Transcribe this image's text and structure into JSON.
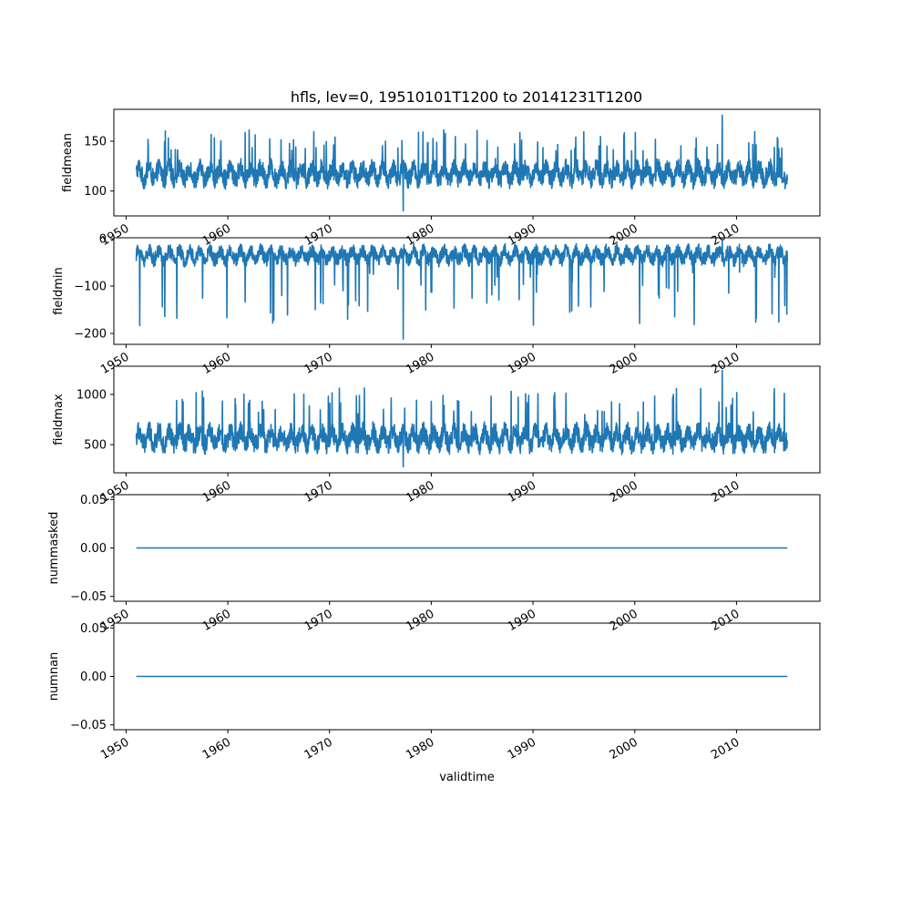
{
  "figure_title": "hfls, lev=0, 19510101T1200 to 20141231T1200",
  "colors": {
    "series": "#1f77b4",
    "axes": "#000000",
    "background": "#ffffff"
  },
  "chart_data": [
    {
      "type": "line",
      "ylabel": "fieldmean",
      "xlim": [
        1948.8,
        2018.2
      ],
      "ylim": [
        75,
        182
      ],
      "yticks": [
        100,
        150
      ],
      "ytick_labels": [
        "100",
        "150"
      ],
      "xticks": [
        1950,
        1960,
        1970,
        1980,
        1990,
        2000,
        2010
      ],
      "xtick_labels": [
        "1950",
        "1960",
        "1970",
        "1980",
        "1990",
        "2000",
        "2010"
      ],
      "x_range": [
        1951.0,
        2015.0
      ],
      "series": [
        {
          "values_summary": {
            "typical_low": 95,
            "typical_high": 140,
            "min": 80,
            "max": 176
          }
        }
      ]
    },
    {
      "type": "line",
      "ylabel": "fieldmin",
      "xlim": [
        1948.8,
        2018.2
      ],
      "ylim": [
        -223,
        2
      ],
      "yticks": [
        -200,
        -100,
        0
      ],
      "ytick_labels": [
        "−200",
        "−100",
        "0"
      ],
      "xticks": [
        1950,
        1960,
        1970,
        1980,
        1990,
        2000,
        2010
      ],
      "xtick_labels": [
        "1950",
        "1960",
        "1970",
        "1980",
        "1990",
        "2000",
        "2010"
      ],
      "x_range": [
        1951.0,
        2015.0
      ],
      "series": [
        {
          "values_summary": {
            "typical_low": -70,
            "typical_high": 0,
            "min": -212,
            "max": 0
          }
        }
      ]
    },
    {
      "type": "line",
      "ylabel": "fieldmax",
      "xlim": [
        1948.8,
        2018.2
      ],
      "ylim": [
        220,
        1280
      ],
      "yticks": [
        500,
        1000
      ],
      "ytick_labels": [
        "500",
        "1000"
      ],
      "xticks": [
        1950,
        1960,
        1970,
        1980,
        1990,
        2000,
        2010
      ],
      "xtick_labels": [
        "1950",
        "1960",
        "1970",
        "1980",
        "1990",
        "2000",
        "2010"
      ],
      "x_range": [
        1951.0,
        2015.0
      ],
      "series": [
        {
          "values_summary": {
            "typical_low": 330,
            "typical_high": 800,
            "min": 280,
            "max": 1240
          }
        }
      ]
    },
    {
      "type": "line",
      "ylabel": "nummasked",
      "xlim": [
        1948.8,
        2018.2
      ],
      "ylim": [
        -0.055,
        0.055
      ],
      "yticks": [
        -0.05,
        0.0,
        0.05
      ],
      "ytick_labels": [
        "−0.05",
        "0.00",
        "0.05"
      ],
      "xticks": [
        1950,
        1960,
        1970,
        1980,
        1990,
        2000,
        2010
      ],
      "xtick_labels": [
        "1950",
        "1960",
        "1970",
        "1980",
        "1990",
        "2000",
        "2010"
      ],
      "x_range": [
        1951.0,
        2015.0
      ],
      "series": [
        {
          "values_summary": {
            "constant": 0.0
          }
        }
      ]
    },
    {
      "type": "line",
      "ylabel": "numnan",
      "xlabel": "validtime",
      "xlim": [
        1948.8,
        2018.2
      ],
      "ylim": [
        -0.055,
        0.055
      ],
      "yticks": [
        -0.05,
        0.0,
        0.05
      ],
      "ytick_labels": [
        "−0.05",
        "0.00",
        "0.05"
      ],
      "xticks": [
        1950,
        1960,
        1970,
        1980,
        1990,
        2000,
        2010
      ],
      "xtick_labels": [
        "1950",
        "1960",
        "1970",
        "1980",
        "1990",
        "2000",
        "2010"
      ],
      "x_range": [
        1951.0,
        2015.0
      ],
      "series": [
        {
          "values_summary": {
            "constant": 0.0
          }
        }
      ]
    }
  ]
}
